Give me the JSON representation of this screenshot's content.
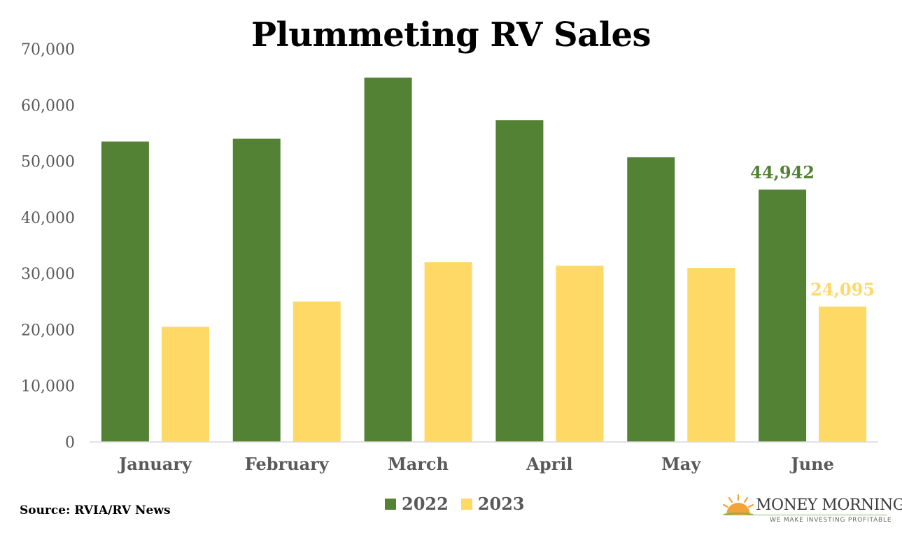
{
  "colors": {
    "series_2022": "#548235",
    "series_2023": "#FFD966",
    "axis_text": "#595959",
    "axis_line": "#d9d9d9"
  },
  "chart_data": {
    "type": "bar",
    "title": "Plummeting RV Sales",
    "categories": [
      "January",
      "February",
      "March",
      "April",
      "May",
      "June"
    ],
    "series": [
      {
        "name": "2022",
        "values": [
          53500,
          54000,
          64900,
          57300,
          50700,
          44942
        ]
      },
      {
        "name": "2023",
        "values": [
          20500,
          25000,
          32000,
          31400,
          31000,
          24095
        ]
      }
    ],
    "data_labels": {
      "2022": {
        "June": "44,942"
      },
      "2023": {
        "June": "24,095"
      }
    },
    "ylim": [
      0,
      70000
    ],
    "yticks": [
      "0",
      "10,000",
      "20,000",
      "30,000",
      "40,000",
      "50,000",
      "60,000",
      "70,000"
    ],
    "grid": false,
    "legend_position": "bottom"
  },
  "footer": {
    "source": "Source: RVIA/RV News"
  },
  "logo": {
    "name": "MONEY MORNING",
    "tagline": "WE MAKE INVESTING PROFITABLE",
    "icon": "sun-icon"
  }
}
